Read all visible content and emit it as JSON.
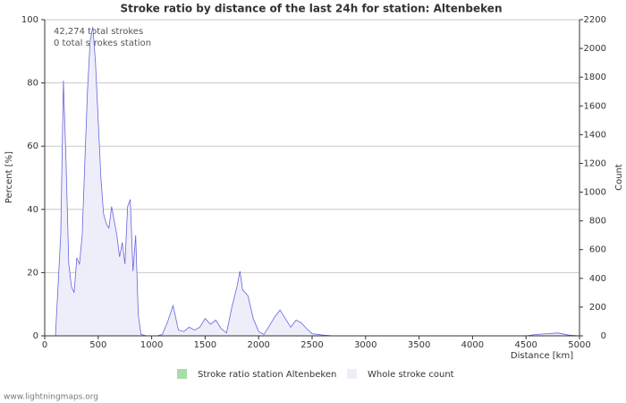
{
  "chart_data": {
    "type": "area",
    "title": "Stroke ratio by distance of the last 24h for station: Altenbeken",
    "annotations": [
      "42,274 total strokes",
      "0 total strokes station"
    ],
    "x_label": "Distance   [km]",
    "y_label": "Percent   [%]",
    "y2_label": "Count",
    "footer": "www.lightningmaps.org",
    "xlim": [
      0,
      5000
    ],
    "xticks": [
      0,
      500,
      1000,
      1500,
      2000,
      2500,
      3000,
      3500,
      4000,
      4500,
      5000
    ],
    "ylim": [
      0,
      100
    ],
    "yticks": [
      0,
      20,
      40,
      60,
      80,
      100
    ],
    "y2lim": [
      0,
      2200
    ],
    "y2ticks": [
      0,
      200,
      400,
      600,
      800,
      1000,
      1200,
      1400,
      1600,
      1800,
      2000,
      2200
    ],
    "grid": true,
    "x": [
      100,
      150,
      175,
      200,
      225,
      250,
      275,
      300,
      325,
      350,
      375,
      400,
      425,
      450,
      475,
      500,
      525,
      550,
      575,
      600,
      625,
      650,
      675,
      700,
      725,
      750,
      775,
      800,
      825,
      850,
      875,
      900,
      950,
      1000,
      1050,
      1100,
      1150,
      1200,
      1250,
      1300,
      1350,
      1400,
      1450,
      1500,
      1550,
      1600,
      1650,
      1700,
      1750,
      1800,
      1825,
      1850,
      1900,
      1950,
      2000,
      2050,
      2100,
      2150,
      2200,
      2250,
      2300,
      2350,
      2400,
      2450,
      2500,
      2600,
      2700,
      3000,
      3500,
      4000,
      4500,
      4600,
      4700,
      4800,
      4900,
      5000
    ],
    "series": [
      {
        "name": "Stroke ratio station Altenbeken",
        "color": "#a8dca8",
        "axis": "y",
        "values": [
          0,
          0,
          0,
          0,
          0,
          0,
          0,
          0,
          0,
          0,
          0,
          0,
          0,
          0,
          0,
          0,
          0,
          0,
          0,
          0,
          0,
          0,
          0,
          0,
          0,
          0,
          0,
          0,
          0,
          0,
          0,
          0,
          0,
          0,
          0,
          0,
          0,
          0,
          0,
          0,
          0,
          0,
          0,
          0,
          0,
          0,
          0,
          0,
          0,
          0,
          0,
          0,
          0,
          0,
          0,
          0,
          0,
          0,
          0,
          0,
          0,
          0,
          0,
          0,
          0,
          0,
          0,
          0,
          0,
          0,
          0,
          0,
          0,
          0,
          0,
          0
        ]
      },
      {
        "name": "Whole stroke count",
        "color": "#6666dd",
        "fill": "#eeeefa",
        "axis": "y2",
        "values": [
          0,
          700,
          1776,
          1200,
          500,
          343,
          300,
          542,
          500,
          700,
          1200,
          1700,
          2050,
          2150,
          1900,
          1500,
          1100,
          850,
          780,
          750,
          900,
          800,
          700,
          550,
          650,
          500,
          900,
          950,
          450,
          700,
          150,
          10,
          0,
          0,
          0,
          10,
          100,
          210,
          40,
          30,
          60,
          40,
          60,
          120,
          80,
          110,
          50,
          20,
          200,
          350,
          450,
          320,
          280,
          120,
          30,
          10,
          70,
          130,
          180,
          120,
          60,
          110,
          90,
          50,
          15,
          5,
          0,
          0,
          0,
          0,
          0,
          10,
          15,
          20,
          5,
          0
        ]
      }
    ]
  }
}
